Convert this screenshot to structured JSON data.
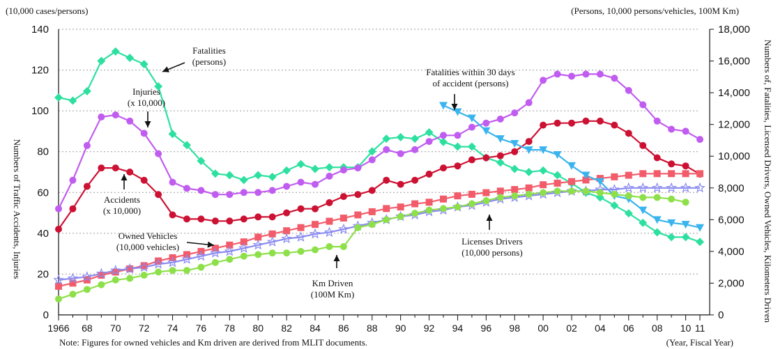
{
  "chart_data": {
    "type": "line",
    "left_axis": {
      "unit": "(10,000 cases/persons)",
      "label": "Numbers of Traffic Accidents, Injuries",
      "range": [
        0,
        140
      ],
      "ticks": [
        "0",
        "20",
        "40",
        "60",
        "80",
        "100",
        "120",
        "140"
      ]
    },
    "right_axis": {
      "unit": "(Persons, 10,000 persons/vehicles, 100M Km)",
      "label": "Numbers of, Fatalities, Licensed Drivers, Owned Vehicles, Kilometers Driven",
      "range": [
        0,
        18000
      ],
      "ticks": [
        "0",
        "2,000",
        "4,000",
        "6,000",
        "8,000",
        "10,000",
        "12,000",
        "14,000",
        "16,000",
        "18,000"
      ]
    },
    "x_axis": {
      "unit": "(Year, Fiscal Year)",
      "ticks": [
        "1966",
        "68",
        "70",
        "72",
        "74",
        "76",
        "78",
        "80",
        "82",
        "84",
        "86",
        "88",
        "90",
        "92",
        "94",
        "96",
        "98",
        "00",
        "02",
        "04",
        "06",
        "08",
        "10",
        "11"
      ],
      "ticks_minor": [
        "67",
        "69",
        "71",
        "73",
        "75",
        "77",
        "79",
        "81",
        "83",
        "85",
        "87",
        "89",
        "91",
        "93",
        "95",
        "97",
        "99",
        "01",
        "03",
        "05",
        "07",
        "09"
      ]
    },
    "note": "Note: Figures for owned vehicles and Km driven are derived from MLIT documents.",
    "grid": true,
    "series": [
      {
        "key": "fatalities",
        "annotation_lines": [
          "Fatalities",
          "(persons)"
        ],
        "axis": "right",
        "color": "#2ee0a0",
        "marker": "diamond",
        "x": [
          1966,
          1967,
          1968,
          1969,
          1970,
          1971,
          1972,
          1973,
          1974,
          1975,
          1976,
          1977,
          1978,
          1979,
          1980,
          1981,
          1982,
          1983,
          1984,
          1985,
          1986,
          1987,
          1988,
          1989,
          1990,
          1991,
          1992,
          1993,
          1994,
          1995,
          1996,
          1997,
          1998,
          1999,
          2000,
          2001,
          2002,
          2003,
          2004,
          2005,
          2006,
          2007,
          2008,
          2009,
          2010,
          2011
        ],
        "values": [
          13700,
          13500,
          14100,
          16000,
          16600,
          16200,
          15800,
          14400,
          11400,
          10700,
          9700,
          8900,
          8800,
          8500,
          8800,
          8700,
          9100,
          9500,
          9200,
          9300,
          9300,
          9300,
          10300,
          11100,
          11200,
          11100,
          11500,
          10900,
          10600,
          10600,
          9900,
          9600,
          9200,
          9000,
          9100,
          8800,
          8300,
          7700,
          7400,
          6900,
          6400,
          5800,
          5200,
          4900,
          4900,
          4600
        ]
      },
      {
        "key": "injuries",
        "annotation_lines": [
          "Injuries",
          "(x 10,000)"
        ],
        "axis": "left",
        "color": "#c05cf0",
        "marker": "circle",
        "x": [
          1966,
          1967,
          1968,
          1969,
          1970,
          1971,
          1972,
          1973,
          1974,
          1975,
          1976,
          1977,
          1978,
          1979,
          1980,
          1981,
          1982,
          1983,
          1984,
          1985,
          1986,
          1987,
          1988,
          1989,
          1990,
          1991,
          1992,
          1993,
          1994,
          1995,
          1996,
          1997,
          1998,
          1999,
          2000,
          2001,
          2002,
          2003,
          2004,
          2005,
          2006,
          2007,
          2008,
          2009,
          2010,
          2011
        ],
        "values": [
          52,
          66,
          83,
          97,
          98,
          95,
          89,
          79,
          65,
          62,
          61,
          59,
          59,
          60,
          60,
          61,
          63,
          65,
          64,
          68,
          71,
          72,
          76,
          81,
          79,
          81,
          85,
          88,
          88,
          92,
          94,
          96,
          99,
          104,
          115,
          118,
          117,
          118,
          118,
          116,
          110,
          103,
          95,
          91,
          90,
          86
        ]
      },
      {
        "key": "accidents",
        "annotation_lines": [
          "Accidents",
          "(x 10,000)"
        ],
        "axis": "left",
        "color": "#cc1133",
        "marker": "circle",
        "x": [
          1966,
          1967,
          1968,
          1969,
          1970,
          1971,
          1972,
          1973,
          1974,
          1975,
          1976,
          1977,
          1978,
          1979,
          1980,
          1981,
          1982,
          1983,
          1984,
          1985,
          1986,
          1987,
          1988,
          1989,
          1990,
          1991,
          1992,
          1993,
          1994,
          1995,
          1996,
          1997,
          1998,
          1999,
          2000,
          2001,
          2002,
          2003,
          2004,
          2005,
          2006,
          2007,
          2008,
          2009,
          2010,
          2011
        ],
        "values": [
          42,
          52,
          63,
          72,
          72,
          70,
          66,
          59,
          49,
          47,
          47,
          46,
          46,
          47,
          48,
          48,
          50,
          52,
          52,
          55,
          58,
          59,
          61,
          66,
          64,
          66,
          69,
          72,
          73,
          76,
          77,
          78,
          80,
          85,
          93,
          94,
          94,
          95,
          95,
          93,
          89,
          83,
          77,
          74,
          73,
          69
        ]
      },
      {
        "key": "licensed_drivers",
        "annotation_lines": [
          "Licenses Drivers",
          "(10,000 persons)"
        ],
        "axis": "right",
        "color": "#f25c6a",
        "marker": "square",
        "x": [
          1966,
          1967,
          1968,
          1969,
          1970,
          1971,
          1972,
          1973,
          1974,
          1975,
          1976,
          1977,
          1978,
          1979,
          1980,
          1981,
          1982,
          1983,
          1984,
          1985,
          1986,
          1987,
          1988,
          1989,
          1990,
          1991,
          1992,
          1993,
          1994,
          1995,
          1996,
          1997,
          1998,
          1999,
          2000,
          2001,
          2002,
          2003,
          2004,
          2005,
          2006,
          2007,
          2008,
          2009,
          2010,
          2011
        ],
        "values": [
          1800,
          2000,
          2200,
          2500,
          2700,
          2900,
          3100,
          3400,
          3600,
          3800,
          4000,
          4200,
          4400,
          4600,
          4900,
          5100,
          5300,
          5500,
          5700,
          5900,
          6100,
          6300,
          6500,
          6700,
          6800,
          7000,
          7100,
          7300,
          7500,
          7600,
          7700,
          7800,
          7900,
          8000,
          8200,
          8300,
          8400,
          8500,
          8600,
          8700,
          8800,
          8900,
          8900,
          8900,
          8900,
          8900
        ]
      },
      {
        "key": "fatalities_30_days",
        "annotation_lines": [
          "Fatalities within 30 days",
          "of accident (persons)"
        ],
        "axis": "right",
        "color": "#3ab4ee",
        "marker": "triangle-down",
        "x": [
          1993,
          1994,
          1995,
          1996,
          1997,
          1998,
          1999,
          2000,
          2001,
          2002,
          2003,
          2004,
          2005,
          2006,
          2007,
          2008,
          2009,
          2010,
          2011
        ],
        "values": [
          13200,
          12800,
          12400,
          11600,
          11100,
          10800,
          10400,
          10400,
          10100,
          9400,
          8800,
          8400,
          7500,
          7300,
          6600,
          6000,
          5800,
          5700,
          5500
        ]
      },
      {
        "key": "owned_vehicles",
        "annotation_lines": [
          "Owned Vehicles",
          "(10,000 vehicles)"
        ],
        "axis": "right",
        "color": "#8a8af0",
        "marker": "star",
        "x": [
          1966,
          1967,
          1968,
          1969,
          1970,
          1971,
          1972,
          1973,
          1974,
          1975,
          1976,
          1977,
          1978,
          1979,
          1980,
          1981,
          1982,
          1983,
          1984,
          1985,
          1986,
          1987,
          1988,
          1989,
          1990,
          1991,
          1992,
          1993,
          1994,
          1995,
          1996,
          1997,
          1998,
          1999,
          2000,
          2001,
          2002,
          2003,
          2004,
          2005,
          2006,
          2007,
          2008,
          2009,
          2010,
          2011
        ],
        "values": [
          2200,
          2300,
          2400,
          2600,
          2800,
          2900,
          3000,
          3200,
          3300,
          3500,
          3700,
          3900,
          4000,
          4200,
          4400,
          4600,
          4800,
          4900,
          5100,
          5200,
          5400,
          5600,
          5800,
          6000,
          6200,
          6300,
          6500,
          6600,
          6800,
          6900,
          7100,
          7300,
          7400,
          7500,
          7600,
          7700,
          7800,
          7800,
          7900,
          7900,
          8000,
          8000,
          8000,
          8000,
          8000,
          8000
        ]
      },
      {
        "key": "km_driven",
        "annotation_lines": [
          "Km Driven",
          "(100M Km)"
        ],
        "axis": "right",
        "color": "#8ee04a",
        "marker": "circle",
        "x": [
          1966,
          1967,
          1968,
          1969,
          1970,
          1971,
          1972,
          1973,
          1974,
          1975,
          1976,
          1977,
          1978,
          1979,
          1980,
          1981,
          1982,
          1983,
          1984,
          1985,
          1986,
          1987,
          1988,
          1989,
          1990,
          1991,
          1992,
          1993,
          1994,
          1995,
          1996,
          1997,
          1998,
          1999,
          2000,
          2001,
          2002,
          2003,
          2004,
          2005,
          2006,
          2007,
          2008,
          2009,
          2010
        ],
        "values": [
          1000,
          1300,
          1600,
          1900,
          2200,
          2300,
          2500,
          2700,
          2800,
          2800,
          3000,
          3300,
          3500,
          3700,
          3800,
          3900,
          3900,
          4000,
          4100,
          4300,
          4300,
          5500,
          5700,
          6000,
          6200,
          6400,
          6600,
          6700,
          6800,
          7000,
          7200,
          7400,
          7500,
          7600,
          7700,
          7800,
          7800,
          7800,
          7700,
          7600,
          7500,
          7400,
          7400,
          7300,
          7100
        ]
      }
    ]
  }
}
